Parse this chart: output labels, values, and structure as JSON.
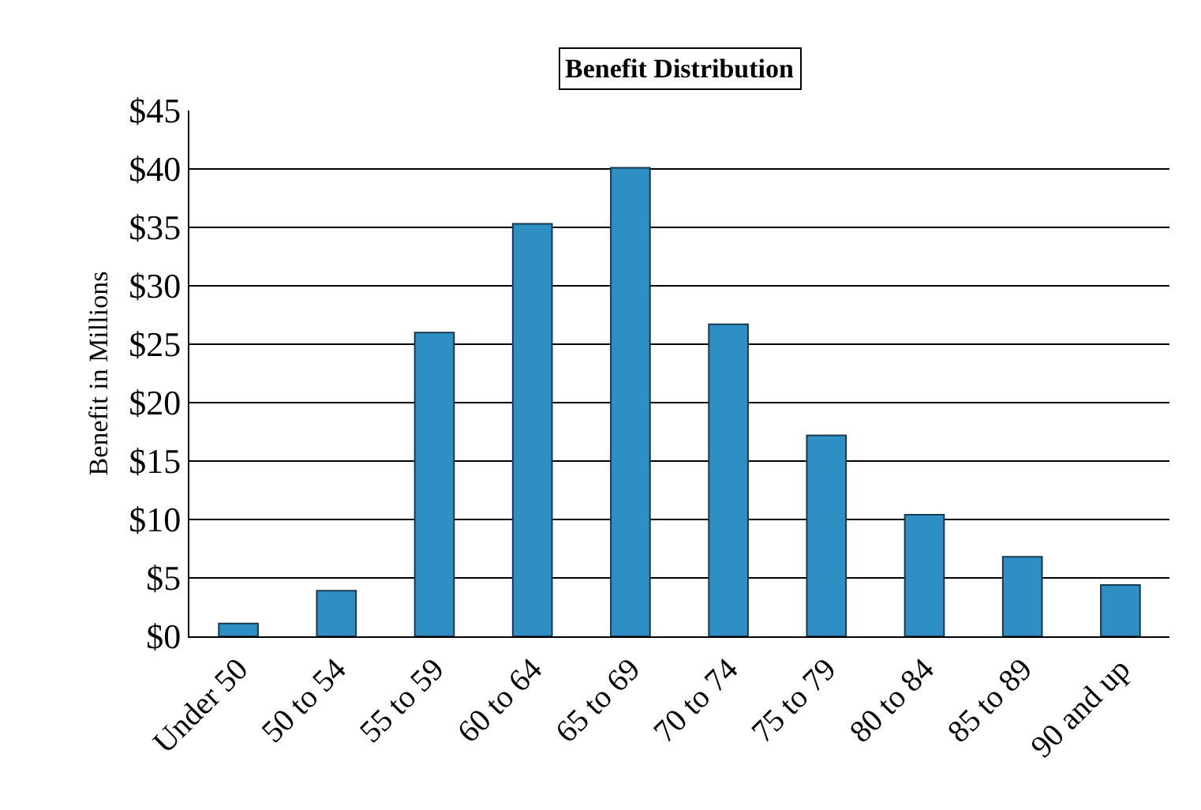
{
  "chart_data": {
    "type": "bar",
    "title": "Benefit Distribution",
    "ylabel": "Benefit in Millions",
    "categories": [
      "Under 50",
      "50 to 54",
      "55 to 59",
      "60 to 64",
      "65 to 69",
      "70 to 74",
      "75 to 79",
      "80 to 84",
      "85 to 89",
      "90 and up"
    ],
    "values": [
      1.1,
      3.9,
      26,
      35.3,
      40.1,
      26.7,
      17.2,
      10.4,
      6.8,
      4.4
    ],
    "color": "#2e8fc4",
    "ylim": [
      0,
      45
    ],
    "yticks": [
      {
        "value": 0,
        "label": "$0"
      },
      {
        "value": 5,
        "label": "$5"
      },
      {
        "value": 10,
        "label": "$10"
      },
      {
        "value": 15,
        "label": "$15"
      },
      {
        "value": 20,
        "label": "$20"
      },
      {
        "value": 25,
        "label": "$25"
      },
      {
        "value": 30,
        "label": "$30"
      },
      {
        "value": 35,
        "label": "$35"
      },
      {
        "value": 40,
        "label": "$40"
      },
      {
        "value": 45,
        "label": "$45"
      }
    ],
    "grid": "y"
  }
}
